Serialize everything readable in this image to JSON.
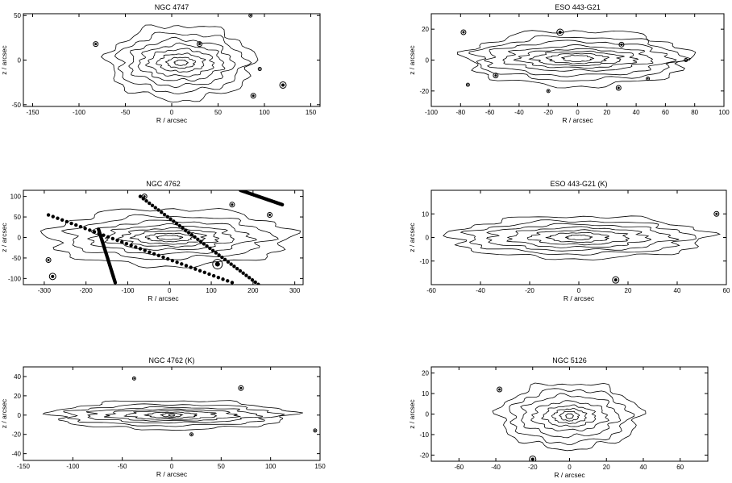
{
  "figure_caption": "",
  "chart_data": [
    {
      "type": "contour",
      "title": "NGC 4747",
      "xlabel": "R  /  arcsec",
      "ylabel": "z  /  arcsec",
      "xlim": [
        -160,
        160
      ],
      "ylim": [
        -52,
        52
      ],
      "xticks": [
        -150,
        -100,
        -50,
        0,
        50,
        100,
        150
      ],
      "yticks": [
        -50,
        0,
        50
      ],
      "center": [
        10,
        -3
      ],
      "isophotes": [
        [
          78,
          42
        ],
        [
          68,
          33
        ],
        [
          55,
          26
        ],
        [
          45,
          20
        ],
        [
          35,
          15
        ],
        [
          25,
          10
        ],
        [
          15,
          6
        ],
        [
          7,
          3
        ]
      ],
      "stars": [
        [
          -82,
          18,
          3
        ],
        [
          95,
          -10,
          2
        ],
        [
          88,
          -40,
          3
        ],
        [
          120,
          -28,
          4
        ],
        [
          30,
          18,
          3
        ],
        [
          85,
          50,
          2
        ]
      ]
    },
    {
      "type": "contour",
      "title": "ESO 443-G21",
      "xlabel": "R  /  arcsec",
      "ylabel": "z  /  arcsec",
      "xlim": [
        -100,
        100
      ],
      "ylim": [
        -30,
        30
      ],
      "xticks": [
        -100,
        -80,
        -60,
        -40,
        -20,
        0,
        20,
        40,
        60,
        80,
        100
      ],
      "yticks": [
        -20,
        0,
        20
      ],
      "center": [
        0,
        1
      ],
      "isophotes": [
        [
          76,
          18
        ],
        [
          70,
          14
        ],
        [
          62,
          11
        ],
        [
          50,
          8
        ],
        [
          40,
          6
        ],
        [
          30,
          4.5
        ],
        [
          20,
          3.2
        ],
        [
          10,
          2
        ]
      ],
      "stars": [
        [
          -12,
          18,
          4
        ],
        [
          -78,
          18,
          3
        ],
        [
          -56,
          -10,
          3
        ],
        [
          48,
          -12,
          2
        ],
        [
          28,
          -18,
          3
        ],
        [
          74,
          0,
          2
        ],
        [
          -75,
          -16,
          2
        ],
        [
          -20,
          -20,
          2
        ],
        [
          30,
          10,
          3
        ]
      ]
    },
    {
      "type": "contour",
      "title": "NGC 4762",
      "xlabel": "R  /  arcsec",
      "ylabel": "z  /  arcsec",
      "xlim": [
        -350,
        320
      ],
      "ylim": [
        -115,
        115
      ],
      "xticks": [
        -300,
        -200,
        -100,
        0,
        100,
        200,
        300
      ],
      "yticks": [
        -100,
        -50,
        0,
        50,
        100
      ],
      "center": [
        0,
        0
      ],
      "isophotes": [
        [
          290,
          70
        ],
        [
          240,
          52
        ],
        [
          190,
          40
        ],
        [
          150,
          30
        ],
        [
          115,
          22
        ],
        [
          85,
          16
        ],
        [
          55,
          10
        ],
        [
          30,
          5
        ]
      ],
      "stars": [
        [
          -280,
          -95,
          4
        ],
        [
          -290,
          -55,
          3
        ],
        [
          115,
          -65,
          6
        ],
        [
          150,
          80,
          3
        ],
        [
          240,
          55,
          3
        ],
        [
          -60,
          100,
          3
        ]
      ],
      "trails": [
        [
          [
            -290,
            55
          ],
          [
            150,
            -110
          ]
        ],
        [
          [
            -170,
            20
          ],
          [
            -130,
            -110
          ]
        ],
        [
          [
            170,
            115
          ],
          [
            270,
            80
          ]
        ],
        [
          [
            -70,
            100
          ],
          [
            220,
            -120
          ]
        ]
      ]
    },
    {
      "type": "contour",
      "title": "ESO 443-G21 (K)",
      "xlabel": "R  /  arcsec",
      "ylabel": "z  /  arcsec",
      "xlim": [
        -60,
        60
      ],
      "ylim": [
        -20,
        20
      ],
      "xticks": [
        -60,
        -40,
        -20,
        0,
        20,
        40,
        60
      ],
      "yticks": [
        -10,
        0,
        10
      ],
      "center": [
        0,
        0
      ],
      "isophotes": [
        [
          52,
          9
        ],
        [
          45,
          7
        ],
        [
          37,
          5.5
        ],
        [
          28,
          4.2
        ],
        [
          20,
          3
        ],
        [
          12,
          2
        ],
        [
          5,
          1
        ]
      ],
      "stars": [
        [
          56,
          10,
          3
        ],
        [
          15,
          -18,
          4
        ]
      ]
    },
    {
      "type": "contour",
      "title": "NGC 4762 (K)",
      "xlabel": "R  /  arcsec",
      "ylabel": "z  /  arcsec",
      "xlim": [
        -150,
        150
      ],
      "ylim": [
        -47,
        50
      ],
      "xticks": [
        -150,
        -100,
        -50,
        0,
        50,
        100,
        150
      ],
      "yticks": [
        -40,
        -20,
        0,
        20,
        40
      ],
      "center": [
        0,
        0
      ],
      "isophotes": [
        [
          120,
          15
        ],
        [
          105,
          11
        ],
        [
          85,
          8
        ],
        [
          65,
          6
        ],
        [
          45,
          4.5
        ],
        [
          25,
          3
        ],
        [
          10,
          2
        ],
        [
          3,
          1
        ]
      ],
      "stars": [
        [
          -38,
          38,
          2
        ],
        [
          70,
          28,
          3
        ],
        [
          20,
          -20,
          2
        ],
        [
          145,
          -16,
          2
        ]
      ]
    },
    {
      "type": "contour",
      "title": "NGC 5126",
      "xlabel": "R  /  arcsec",
      "ylabel": "z  /  arcsec",
      "xlim": [
        -75,
        75
      ],
      "ylim": [
        -23,
        23
      ],
      "xticks": [
        -60,
        -40,
        -20,
        0,
        20,
        40,
        60
      ],
      "yticks": [
        -20,
        -10,
        0,
        10,
        20
      ],
      "center": [
        0,
        -1
      ],
      "isophotes": [
        [
          38,
          16
        ],
        [
          32,
          13
        ],
        [
          26,
          10
        ],
        [
          20,
          7
        ],
        [
          14,
          5
        ],
        [
          9,
          3.5
        ],
        [
          5,
          2.3
        ],
        [
          2,
          1.2
        ]
      ],
      "stars": [
        [
          -38,
          12,
          3
        ],
        [
          -20,
          -22,
          4
        ]
      ]
    }
  ]
}
